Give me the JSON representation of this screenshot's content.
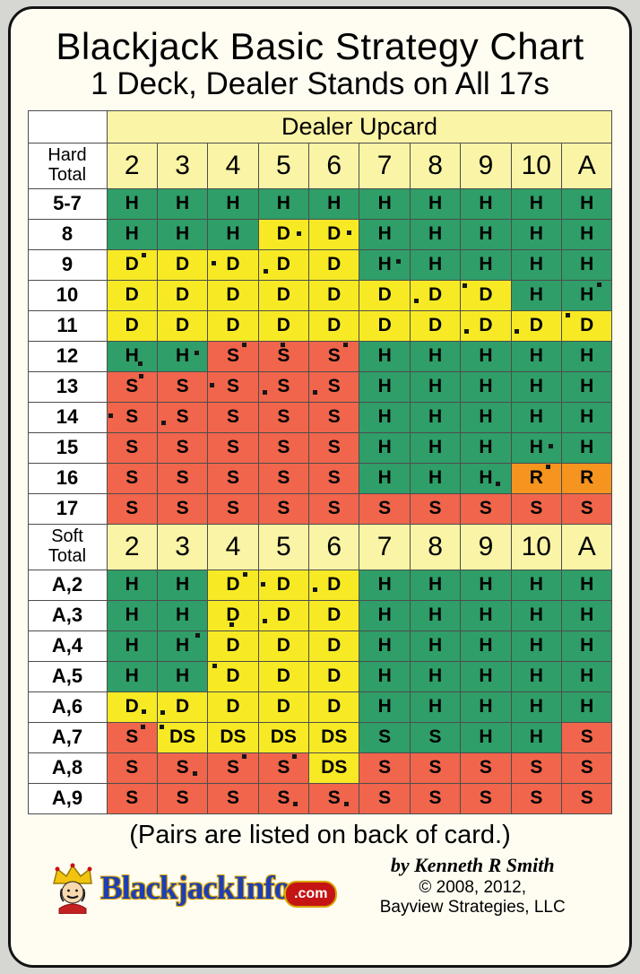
{
  "chart_data": {
    "type": "table",
    "title": "Blackjack Basic Strategy Chart",
    "subtitle": "1 Deck, Dealer Stands on All 17s",
    "column_group_label": "Dealer Upcard",
    "columns": [
      "2",
      "3",
      "4",
      "5",
      "6",
      "7",
      "8",
      "9",
      "10",
      "A"
    ],
    "cell_colors": {
      "g": "#2f9e68",
      "r": "#f0654b",
      "y": "#f7ea25",
      "o": "#f5941f",
      "header": "#faf4a6",
      "label_bg": "#ffffff"
    },
    "sections": [
      {
        "id": "hard",
        "label_lines": [
          "Hard",
          "Total"
        ],
        "rows": [
          {
            "label": "5-7",
            "cells": [
              "H",
              "H",
              "H",
              "H",
              "H",
              "H",
              "H",
              "H",
              "H",
              "H"
            ],
            "colors": [
              "g",
              "g",
              "g",
              "g",
              "g",
              "g",
              "g",
              "g",
              "g",
              "g"
            ]
          },
          {
            "label": "8",
            "cells": [
              "H",
              "H",
              "H",
              "D",
              "D",
              "H",
              "H",
              "H",
              "H",
              "H"
            ],
            "colors": [
              "g",
              "g",
              "g",
              "y",
              "y",
              "g",
              "g",
              "g",
              "g",
              "g"
            ]
          },
          {
            "label": "9",
            "cells": [
              "D",
              "D",
              "D",
              "D",
              "D",
              "H",
              "H",
              "H",
              "H",
              "H"
            ],
            "colors": [
              "y",
              "y",
              "y",
              "y",
              "y",
              "g",
              "g",
              "g",
              "g",
              "g"
            ]
          },
          {
            "label": "10",
            "cells": [
              "D",
              "D",
              "D",
              "D",
              "D",
              "D",
              "D",
              "D",
              "H",
              "H"
            ],
            "colors": [
              "y",
              "y",
              "y",
              "y",
              "y",
              "y",
              "y",
              "y",
              "g",
              "g"
            ]
          },
          {
            "label": "11",
            "cells": [
              "D",
              "D",
              "D",
              "D",
              "D",
              "D",
              "D",
              "D",
              "D",
              "D"
            ],
            "colors": [
              "y",
              "y",
              "y",
              "y",
              "y",
              "y",
              "y",
              "y",
              "y",
              "y"
            ]
          },
          {
            "label": "12",
            "cells": [
              "H",
              "H",
              "S",
              "S",
              "S",
              "H",
              "H",
              "H",
              "H",
              "H"
            ],
            "colors": [
              "g",
              "g",
              "r",
              "r",
              "r",
              "g",
              "g",
              "g",
              "g",
              "g"
            ]
          },
          {
            "label": "13",
            "cells": [
              "S",
              "S",
              "S",
              "S",
              "S",
              "H",
              "H",
              "H",
              "H",
              "H"
            ],
            "colors": [
              "r",
              "r",
              "r",
              "r",
              "r",
              "g",
              "g",
              "g",
              "g",
              "g"
            ]
          },
          {
            "label": "14",
            "cells": [
              "S",
              "S",
              "S",
              "S",
              "S",
              "H",
              "H",
              "H",
              "H",
              "H"
            ],
            "colors": [
              "r",
              "r",
              "r",
              "r",
              "r",
              "g",
              "g",
              "g",
              "g",
              "g"
            ]
          },
          {
            "label": "15",
            "cells": [
              "S",
              "S",
              "S",
              "S",
              "S",
              "H",
              "H",
              "H",
              "H",
              "H"
            ],
            "colors": [
              "r",
              "r",
              "r",
              "r",
              "r",
              "g",
              "g",
              "g",
              "g",
              "g"
            ]
          },
          {
            "label": "16",
            "cells": [
              "S",
              "S",
              "S",
              "S",
              "S",
              "H",
              "H",
              "H",
              "R",
              "R"
            ],
            "colors": [
              "r",
              "r",
              "r",
              "r",
              "r",
              "g",
              "g",
              "g",
              "o",
              "o"
            ]
          },
          {
            "label": "17",
            "cells": [
              "S",
              "S",
              "S",
              "S",
              "S",
              "S",
              "S",
              "S",
              "S",
              "S"
            ],
            "colors": [
              "r",
              "r",
              "r",
              "r",
              "r",
              "r",
              "r",
              "r",
              "r",
              "r"
            ]
          }
        ]
      },
      {
        "id": "soft",
        "label_lines": [
          "Soft",
          "Total"
        ],
        "rows": [
          {
            "label": "A,2",
            "cells": [
              "H",
              "H",
              "D",
              "D",
              "D",
              "H",
              "H",
              "H",
              "H",
              "H"
            ],
            "colors": [
              "g",
              "g",
              "y",
              "y",
              "y",
              "g",
              "g",
              "g",
              "g",
              "g"
            ]
          },
          {
            "label": "A,3",
            "cells": [
              "H",
              "H",
              "D",
              "D",
              "D",
              "H",
              "H",
              "H",
              "H",
              "H"
            ],
            "colors": [
              "g",
              "g",
              "y",
              "y",
              "y",
              "g",
              "g",
              "g",
              "g",
              "g"
            ]
          },
          {
            "label": "A,4",
            "cells": [
              "H",
              "H",
              "D",
              "D",
              "D",
              "H",
              "H",
              "H",
              "H",
              "H"
            ],
            "colors": [
              "g",
              "g",
              "y",
              "y",
              "y",
              "g",
              "g",
              "g",
              "g",
              "g"
            ]
          },
          {
            "label": "A,5",
            "cells": [
              "H",
              "H",
              "D",
              "D",
              "D",
              "H",
              "H",
              "H",
              "H",
              "H"
            ],
            "colors": [
              "g",
              "g",
              "y",
              "y",
              "y",
              "g",
              "g",
              "g",
              "g",
              "g"
            ]
          },
          {
            "label": "A,6",
            "cells": [
              "D",
              "D",
              "D",
              "D",
              "D",
              "H",
              "H",
              "H",
              "H",
              "H"
            ],
            "colors": [
              "y",
              "y",
              "y",
              "y",
              "y",
              "g",
              "g",
              "g",
              "g",
              "g"
            ]
          },
          {
            "label": "A,7",
            "cells": [
              "S",
              "DS",
              "DS",
              "DS",
              "DS",
              "S",
              "S",
              "H",
              "H",
              "S"
            ],
            "colors": [
              "r",
              "y",
              "y",
              "y",
              "y",
              "g",
              "g",
              "g",
              "g",
              "r"
            ]
          },
          {
            "label": "A,8",
            "cells": [
              "S",
              "S",
              "S",
              "S",
              "DS",
              "S",
              "S",
              "S",
              "S",
              "S"
            ],
            "colors": [
              "r",
              "r",
              "r",
              "r",
              "y",
              "r",
              "r",
              "r",
              "r",
              "r"
            ]
          },
          {
            "label": "A,9",
            "cells": [
              "S",
              "S",
              "S",
              "S",
              "S",
              "S",
              "S",
              "S",
              "S",
              "S"
            ],
            "colors": [
              "r",
              "r",
              "r",
              "r",
              "r",
              "r",
              "r",
              "r",
              "r",
              "r"
            ]
          }
        ]
      }
    ],
    "dots": [
      {
        "s": "hard",
        "r": 1,
        "c": 3,
        "x": 76,
        "y": 40
      },
      {
        "s": "hard",
        "r": 1,
        "c": 4,
        "x": 76,
        "y": 38
      },
      {
        "s": "hard",
        "r": 2,
        "c": 0,
        "x": 70,
        "y": 10
      },
      {
        "s": "hard",
        "r": 2,
        "c": 2,
        "x": 6,
        "y": 38
      },
      {
        "s": "hard",
        "r": 2,
        "c": 3,
        "x": 10,
        "y": 64
      },
      {
        "s": "hard",
        "r": 2,
        "c": 5,
        "x": 74,
        "y": 30
      },
      {
        "s": "hard",
        "r": 3,
        "c": 6,
        "x": 8,
        "y": 60
      },
      {
        "s": "hard",
        "r": 3,
        "c": 7,
        "x": 4,
        "y": 10
      },
      {
        "s": "hard",
        "r": 3,
        "c": 9,
        "x": 70,
        "y": 8
      },
      {
        "s": "hard",
        "r": 4,
        "c": 7,
        "x": 6,
        "y": 62
      },
      {
        "s": "hard",
        "r": 4,
        "c": 8,
        "x": 6,
        "y": 62
      },
      {
        "s": "hard",
        "r": 4,
        "c": 9,
        "x": 8,
        "y": 6
      },
      {
        "s": "hard",
        "r": 5,
        "c": 0,
        "x": 62,
        "y": 68
      },
      {
        "s": "hard",
        "r": 5,
        "c": 1,
        "x": 74,
        "y": 30
      },
      {
        "s": "hard",
        "r": 5,
        "c": 2,
        "x": 68,
        "y": 4
      },
      {
        "s": "hard",
        "r": 5,
        "c": 3,
        "x": 44,
        "y": 2
      },
      {
        "s": "hard",
        "r": 5,
        "c": 4,
        "x": 68,
        "y": 4
      },
      {
        "s": "hard",
        "r": 6,
        "c": 0,
        "x": 64,
        "y": 6
      },
      {
        "s": "hard",
        "r": 6,
        "c": 2,
        "x": 4,
        "y": 36
      },
      {
        "s": "hard",
        "r": 6,
        "c": 3,
        "x": 8,
        "y": 60
      },
      {
        "s": "hard",
        "r": 6,
        "c": 4,
        "x": 8,
        "y": 60
      },
      {
        "s": "hard",
        "r": 7,
        "c": 0,
        "x": 2,
        "y": 38
      },
      {
        "s": "hard",
        "r": 7,
        "c": 1,
        "x": 8,
        "y": 60
      },
      {
        "s": "hard",
        "r": 8,
        "c": 8,
        "x": 74,
        "y": 36
      },
      {
        "s": "hard",
        "r": 9,
        "c": 7,
        "x": 70,
        "y": 60
      },
      {
        "s": "hard",
        "r": 9,
        "c": 8,
        "x": 70,
        "y": 4
      },
      {
        "s": "soft",
        "r": 0,
        "c": 2,
        "x": 70,
        "y": 6
      },
      {
        "s": "soft",
        "r": 0,
        "c": 3,
        "x": 4,
        "y": 40
      },
      {
        "s": "soft",
        "r": 0,
        "c": 4,
        "x": 8,
        "y": 58
      },
      {
        "s": "soft",
        "r": 1,
        "c": 2,
        "x": 42,
        "y": 74
      },
      {
        "s": "soft",
        "r": 1,
        "c": 3,
        "x": 8,
        "y": 60
      },
      {
        "s": "soft",
        "r": 2,
        "c": 1,
        "x": 76,
        "y": 6
      },
      {
        "s": "soft",
        "r": 3,
        "c": 2,
        "x": 8,
        "y": 6
      },
      {
        "s": "soft",
        "r": 4,
        "c": 0,
        "x": 70,
        "y": 58
      },
      {
        "s": "soft",
        "r": 4,
        "c": 1,
        "x": 6,
        "y": 60
      },
      {
        "s": "soft",
        "r": 5,
        "c": 0,
        "x": 68,
        "y": 6
      },
      {
        "s": "soft",
        "r": 5,
        "c": 1,
        "x": 4,
        "y": 6
      },
      {
        "s": "soft",
        "r": 6,
        "c": 1,
        "x": 70,
        "y": 60
      },
      {
        "s": "soft",
        "r": 6,
        "c": 2,
        "x": 68,
        "y": 4
      },
      {
        "s": "soft",
        "r": 6,
        "c": 3,
        "x": 68,
        "y": 4
      },
      {
        "s": "soft",
        "r": 7,
        "c": 3,
        "x": 70,
        "y": 62
      },
      {
        "s": "soft",
        "r": 7,
        "c": 4,
        "x": 70,
        "y": 62
      }
    ]
  },
  "footer": {
    "pairs_note": "(Pairs are listed on back of card.)",
    "byline": "by Kenneth R Smith",
    "copyright_line1": "© 2008, 2012,",
    "copyright_line2": "Bayview Strategies, LLC",
    "logo_text_main": "BlackjackInfo",
    "logo_text_suffix": ".com"
  }
}
